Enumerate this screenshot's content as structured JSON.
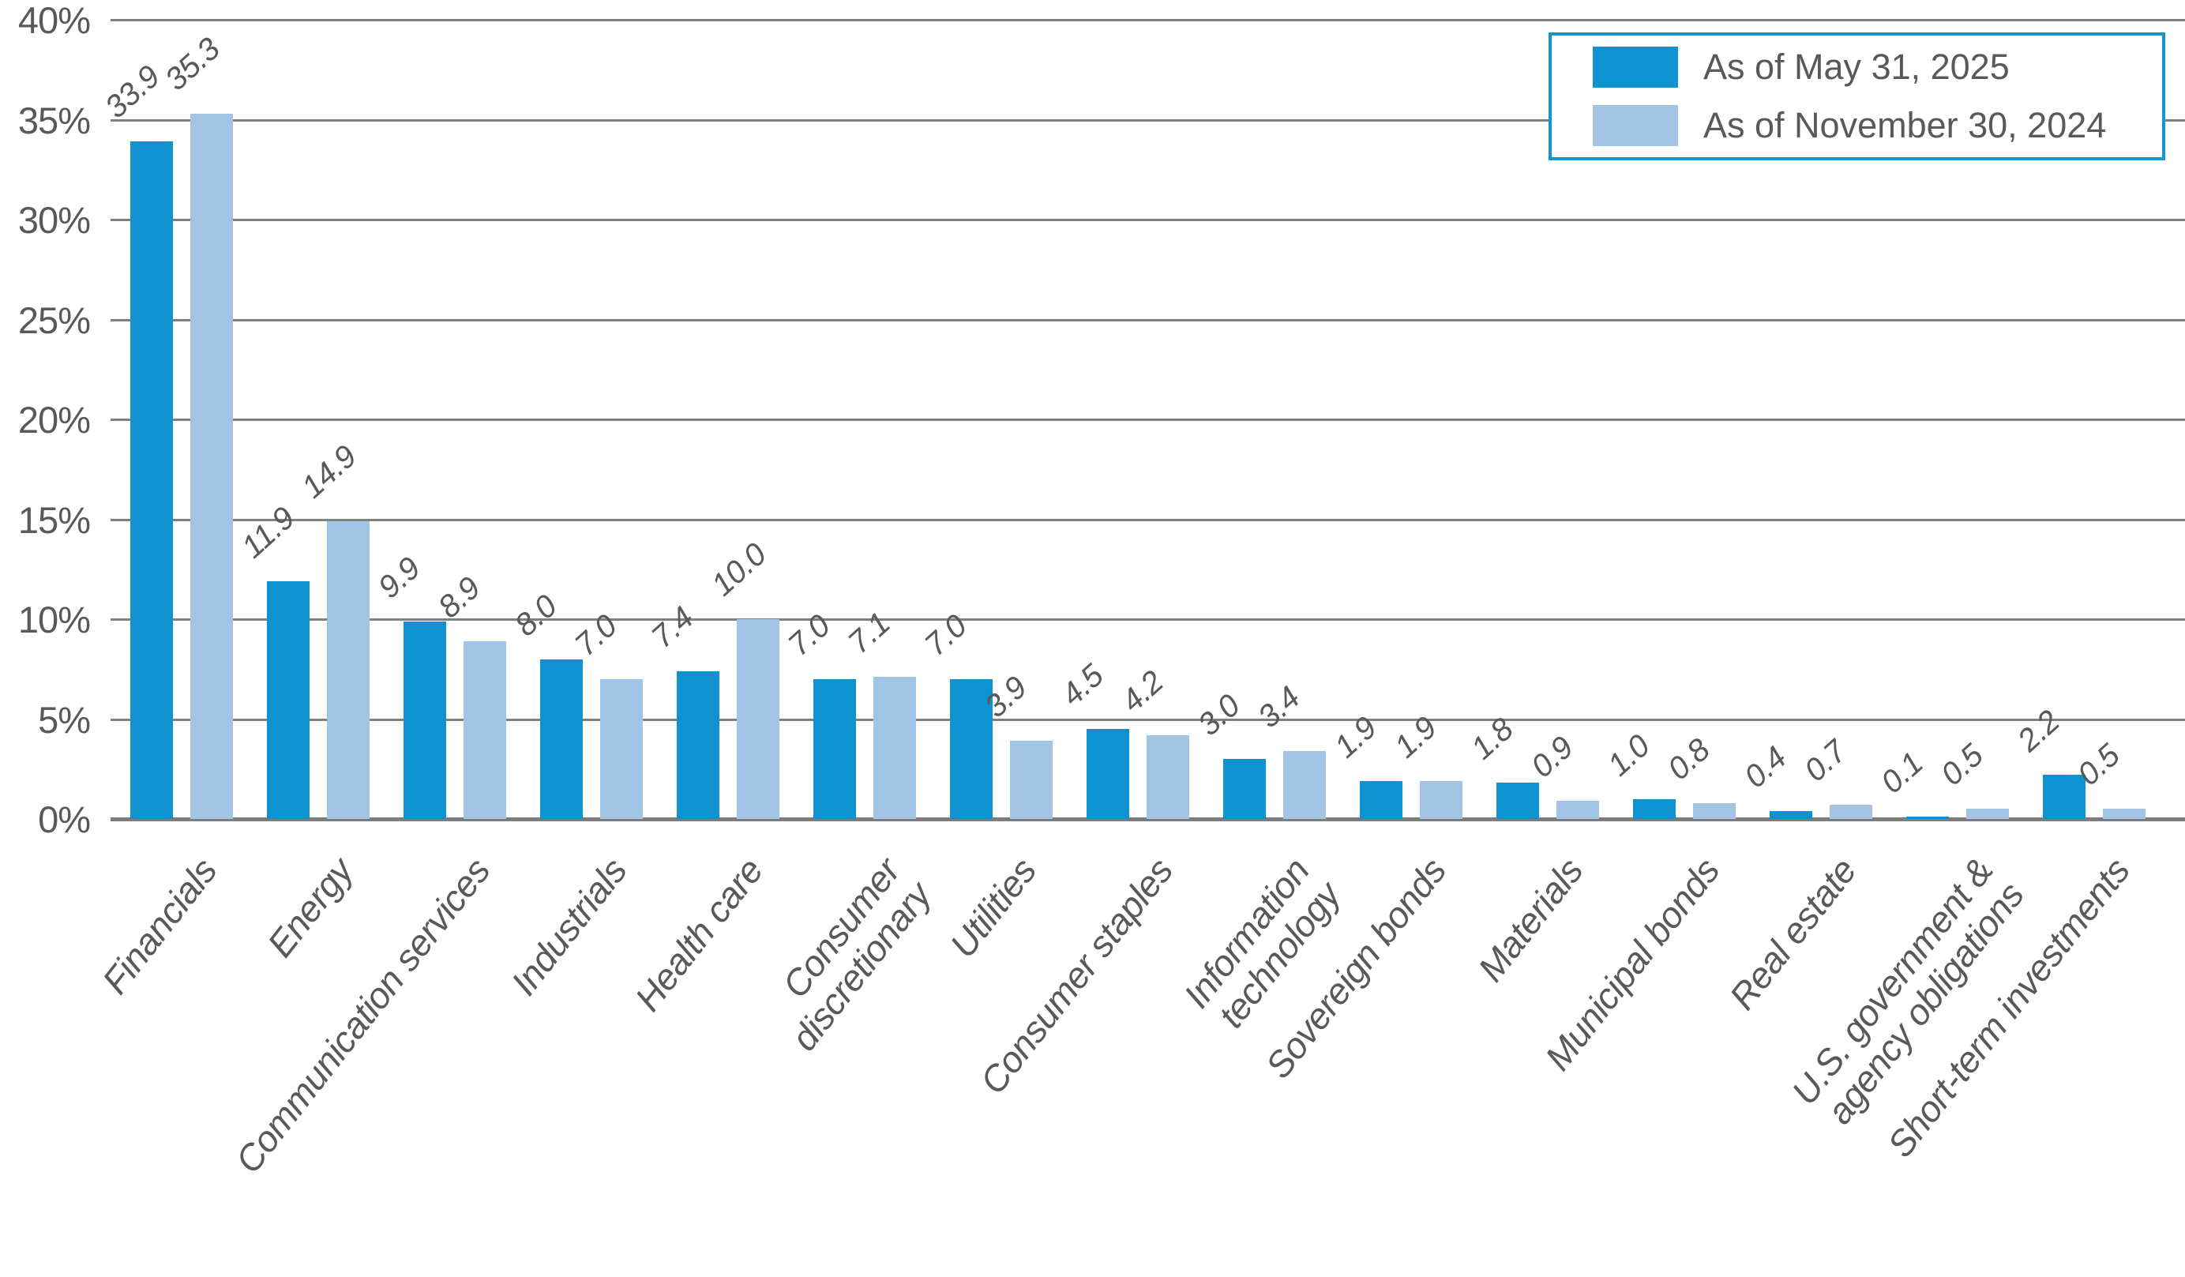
{
  "chart_data": {
    "type": "bar",
    "title": "",
    "xlabel": "",
    "ylabel": "",
    "ylim": [
      0,
      40
    ],
    "grid": true,
    "legend_position": "top-right",
    "y_tick_labels": [
      "0%",
      "5%",
      "10%",
      "15%",
      "20%",
      "25%",
      "30%",
      "35%",
      "40%"
    ],
    "y_tick_values": [
      0,
      5,
      10,
      15,
      20,
      25,
      30,
      35,
      40
    ],
    "categories": [
      "Financials",
      "Energy",
      "Communication services",
      "Industrials",
      "Health care",
      "Consumer\ndiscretionary",
      "Utilities",
      "Consumer staples",
      "Information\ntechnology",
      "Sovereign bonds",
      "Materials",
      "Municipal bonds",
      "Real estate",
      "U.S. government &\nagency obligations",
      "Short-term investments"
    ],
    "series": [
      {
        "name": "As of May 31, 2025",
        "color": "#0f93d0",
        "values": [
          33.9,
          11.9,
          9.9,
          8.0,
          7.4,
          7.0,
          7.0,
          4.5,
          3.0,
          1.9,
          1.8,
          1.0,
          0.4,
          0.1,
          2.2
        ]
      },
      {
        "name": "As of November 30, 2024",
        "color": "#a2c5e5",
        "values": [
          35.3,
          14.9,
          8.9,
          7.0,
          10.0,
          7.1,
          3.9,
          4.2,
          3.4,
          1.9,
          0.9,
          0.8,
          0.7,
          0.5,
          0.5
        ]
      }
    ],
    "colors": {
      "grid_line": "#808080",
      "axis_line": "#7d7d7d",
      "text": "#58595b",
      "legend_border": "#1494d2",
      "background": "#ffffff"
    }
  },
  "legend": {
    "items": [
      {
        "label": "As of May 31, 2025"
      },
      {
        "label": "As of November 30, 2024"
      }
    ]
  }
}
